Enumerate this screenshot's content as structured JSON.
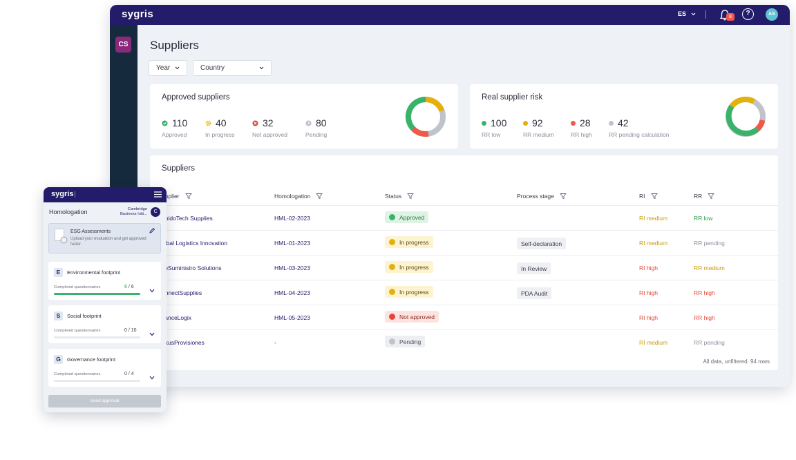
{
  "app": {
    "logo": "sygris",
    "language": "ES",
    "notifications": "8",
    "help": "?",
    "user_initials": "AS",
    "workspace": "CS"
  },
  "page": {
    "title": "Suppliers"
  },
  "filters": [
    {
      "label": "Year"
    },
    {
      "label": "Country"
    }
  ],
  "approved_card": {
    "title": "Approved suppliers",
    "stats": [
      {
        "value": "110",
        "label": "Approved",
        "color": "#3ab36a",
        "icon": "check-circle-icon"
      },
      {
        "value": "40",
        "label": "In progress",
        "color": "#e3b10a",
        "icon": "gear-icon"
      },
      {
        "value": "32",
        "label": "Not approved",
        "color": "#e2463a",
        "icon": "x-circle-icon"
      },
      {
        "value": "80",
        "label": "Pending",
        "color": "#bfc3ca",
        "icon": "clock-icon"
      }
    ]
  },
  "risk_card": {
    "title": "Real supplier risk",
    "stats": [
      {
        "value": "100",
        "label": "RR low",
        "color": "#3ab36a"
      },
      {
        "value": "92",
        "label": "RR medium",
        "color": "#e3b10a"
      },
      {
        "value": "28",
        "label": "RR high",
        "color": "#f0584a"
      },
      {
        "value": "42",
        "label": "RR pending calculation",
        "color": "#bfc3ca"
      }
    ]
  },
  "table": {
    "title": "Suppliers",
    "headers": {
      "supplier": "upplier",
      "homologation": "Homologation",
      "status": "Status",
      "stage": "Process stage",
      "ri": "RI",
      "rr": "RR"
    },
    "rows": [
      {
        "supplier": "ápidoTech Supplies",
        "homologation": "HML-02-2023",
        "status": "Approved",
        "status_kind": "approved",
        "stage": "",
        "ri": "RI medium",
        "ri_kind": "medium",
        "rr": "RR low",
        "rr_kind": "low"
      },
      {
        "supplier": "lobal Logistics Innovation",
        "homologation": "HML-01-2023",
        "status": "In progress",
        "status_kind": "progress",
        "stage": "Self-declaration",
        "ri": "RI medium",
        "ri_kind": "medium",
        "rr": "RR pending",
        "rr_kind": "pending"
      },
      {
        "supplier": "coSuministro Solutions",
        "homologation": "HML-03-2023",
        "status": "In progress",
        "status_kind": "progress",
        "stage": "In Review",
        "ri": "RI high",
        "ri_kind": "high",
        "rr": "RR medium",
        "rr_kind": "medium"
      },
      {
        "supplier": "onnectSupplies",
        "homologation": "HML-04-2023",
        "status": "In progress",
        "status_kind": "progress",
        "stage": "PDA Audit",
        "ri": "RI high",
        "ri_kind": "high",
        "rr": "RR high",
        "rr_kind": "high"
      },
      {
        "supplier": "vanceLogix",
        "homologation": "HML-05-2023",
        "status": "Not approved",
        "status_kind": "rejected",
        "stage": "",
        "ri": "RI high",
        "ri_kind": "high",
        "rr": "RR high",
        "rr_kind": "high"
      },
      {
        "supplier": "exusProvisiones",
        "homologation": "-",
        "status": "Pending",
        "status_kind": "pending",
        "stage": "",
        "ri": "RI medium",
        "ri_kind": "medium",
        "rr": "RR pending",
        "rr_kind": "pending"
      }
    ],
    "footnote": "All data, unfiltered. 94 rows"
  },
  "mobile": {
    "logo": "sygris",
    "header": "Homologation",
    "org": "Cambridge Business Initi...",
    "org_initial": "C",
    "esg": {
      "title": "ESG Assessments",
      "subtitle": "Upload your evaluation and get approved faster."
    },
    "sections": [
      {
        "letter": "E",
        "title": "Environmental footprint",
        "cq_label": "Completed questionnaires",
        "done": 6,
        "total": 6,
        "count": "6 / 6"
      },
      {
        "letter": "S",
        "title": "Social footprint",
        "cq_label": "Completed questionnaires",
        "done": 0,
        "total": 10,
        "count": "0 / 10"
      },
      {
        "letter": "G",
        "title": "Governance footprint",
        "cq_label": "Completed questionnaires",
        "done": 0,
        "total": 4,
        "count": "0 / 4"
      }
    ],
    "send_button": "Send approval"
  }
}
